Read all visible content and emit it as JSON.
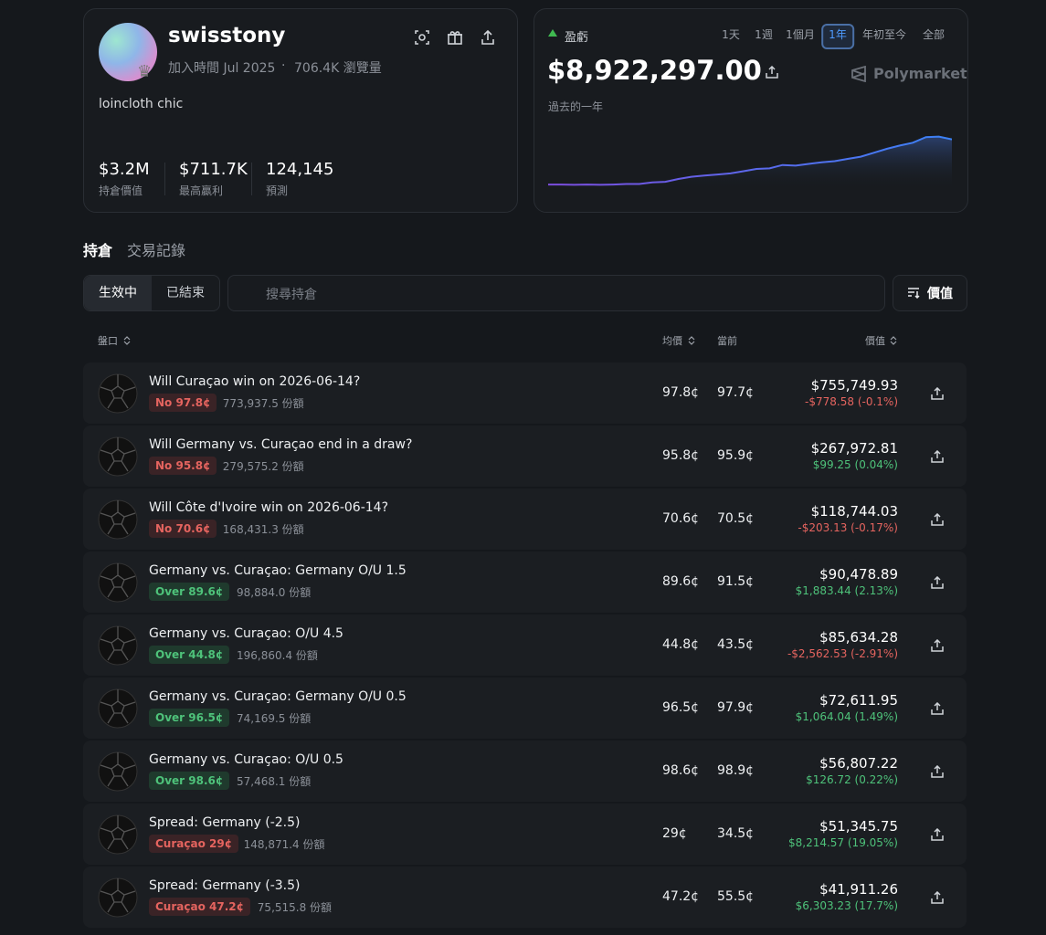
{
  "profile": {
    "username": "swisstony",
    "joined": "加入時間 Jul 2025",
    "separator": "·",
    "views": "706.4K 瀏覽量",
    "bio": "loincloth chic",
    "stats": [
      {
        "value": "$3.2M",
        "label": "持倉價值"
      },
      {
        "value": "$711.7K",
        "label": "最高贏利"
      },
      {
        "value": "124,145",
        "label": "預測"
      }
    ]
  },
  "pnl": {
    "label": "盈虧",
    "ranges": [
      "1天",
      "1週",
      "1個月",
      "1年",
      "年初至今",
      "全部"
    ],
    "active_range": 3,
    "amount": "$8,922,297.00",
    "brand": "Polymarket",
    "period": "過去的一年",
    "chart": {
      "type": "line",
      "values": [
        0.8,
        0.8,
        0.75,
        0.8,
        0.75,
        0.8,
        0.9,
        0.9,
        1.2,
        1.3,
        1.8,
        2.2,
        2.4,
        2.6,
        2.8,
        3.2,
        3.6,
        3.7,
        4.3,
        4.2,
        4.5,
        4.8,
        5.0,
        5.4,
        5.8,
        6.5,
        7.2,
        7.8,
        8.3,
        9.3,
        9.4,
        8.9
      ],
      "ylim": [
        0,
        9.5
      ]
    }
  },
  "tabs": [
    "持倉",
    "交易記錄"
  ],
  "filters": [
    "生效中",
    "已結束"
  ],
  "search_placeholder": "搜尋持倉",
  "sort_button": "價值",
  "table": {
    "headers": [
      "盤口",
      "均價",
      "當前",
      "價值"
    ],
    "rows": [
      {
        "title": "Will Curaçao win on 2026-06-14?",
        "badge": "No 97.8¢",
        "badge_color": "red",
        "shares": "773,937.5 份額",
        "avg": "97.8¢",
        "current": "97.7¢",
        "value": "$755,749.93",
        "change": "-$778.58 (-0.1%)"
      },
      {
        "title": "Will Germany vs. Curaçao end in a draw?",
        "badge": "No 95.8¢",
        "badge_color": "red",
        "shares": "279,575.2 份額",
        "avg": "95.8¢",
        "current": "95.9¢",
        "value": "$267,972.81",
        "change": "$99.25 (0.04%)"
      },
      {
        "title": "Will Côte d'Ivoire win on 2026-06-14?",
        "badge": "No 70.6¢",
        "badge_color": "red",
        "shares": "168,431.3 份額",
        "avg": "70.6¢",
        "current": "70.5¢",
        "value": "$118,744.03",
        "change": "-$203.13 (-0.17%)"
      },
      {
        "title": "Germany vs. Curaçao: Germany O/U 1.5",
        "badge": "Over 89.6¢",
        "badge_color": "green",
        "shares": "98,884.0 份額",
        "avg": "89.6¢",
        "current": "91.5¢",
        "value": "$90,478.89",
        "change": "$1,883.44 (2.13%)"
      },
      {
        "title": "Germany vs. Curaçao: O/U 4.5",
        "badge": "Over 44.8¢",
        "badge_color": "green",
        "shares": "196,860.4 份額",
        "avg": "44.8¢",
        "current": "43.5¢",
        "value": "$85,634.28",
        "change": "-$2,562.53 (-2.91%)"
      },
      {
        "title": "Germany vs. Curaçao: Germany O/U 0.5",
        "badge": "Over 96.5¢",
        "badge_color": "green",
        "shares": "74,169.5 份額",
        "avg": "96.5¢",
        "current": "97.9¢",
        "value": "$72,611.95",
        "change": "$1,064.04 (1.49%)"
      },
      {
        "title": "Germany vs. Curaçao: O/U 0.5",
        "badge": "Over 98.6¢",
        "badge_color": "green",
        "shares": "57,468.1 份額",
        "avg": "98.6¢",
        "current": "98.9¢",
        "value": "$56,807.22",
        "change": "$126.72 (0.22%)"
      },
      {
        "title": "Spread: Germany (-2.5)",
        "badge": "Curaçao 29¢",
        "badge_color": "red",
        "shares": "148,871.4 份額",
        "avg": "29¢",
        "current": "34.5¢",
        "value": "$51,345.75",
        "change": "$8,214.57 (19.05%)"
      },
      {
        "title": "Spread: Germany (-3.5)",
        "badge": "Curaçao 47.2¢",
        "badge_color": "red",
        "shares": "75,515.8 份額",
        "avg": "47.2¢",
        "current": "55.5¢",
        "value": "$41,911.26",
        "change": "$6,303.23 (17.7%)"
      }
    ]
  }
}
